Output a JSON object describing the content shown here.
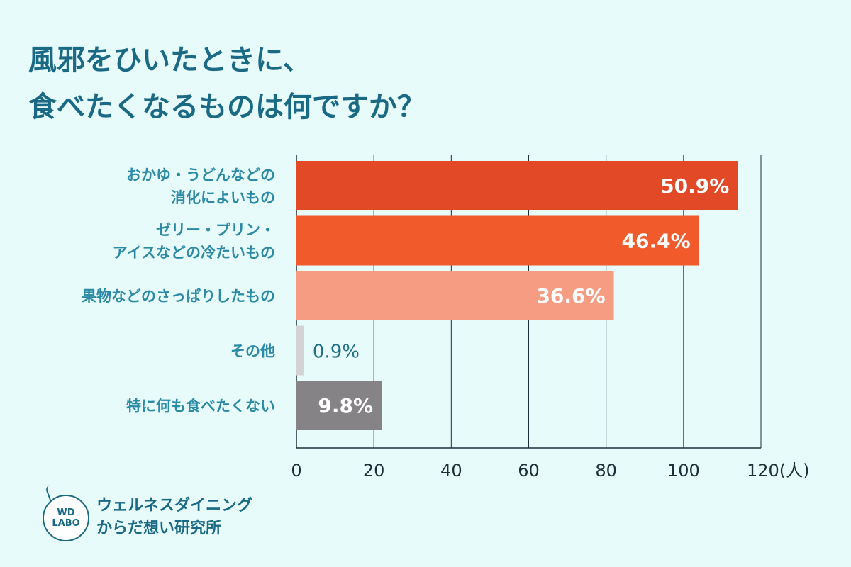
{
  "title": {
    "line1": "風邪をひいたときに、",
    "line2": "食べたくなるものは何ですか？"
  },
  "chart_data": {
    "type": "bar",
    "orientation": "horizontal",
    "categories": [
      [
        "おかゆ・うどんなどの",
        "消化によいもの"
      ],
      [
        "ゼリー・プリン・",
        "アイスなどの冷たいもの"
      ],
      [
        "果物などのさっぱりしたもの"
      ],
      [
        "その他"
      ],
      [
        "特に何も食べたくない"
      ]
    ],
    "values": [
      114,
      104,
      82,
      2,
      22
    ],
    "percent_labels": [
      "50.9%",
      "46.4%",
      "36.6%",
      "0.9%",
      "9.8%"
    ],
    "colors": [
      "#e14927",
      "#f15a2b",
      "#f59c82",
      "#d3d3d3",
      "#858385"
    ],
    "xlim": [
      0,
      120
    ],
    "xticks": [
      "0",
      "20",
      "40",
      "60",
      "80",
      "100",
      "120(人)"
    ],
    "grid": true
  },
  "logo": {
    "badge_line1": "WD",
    "badge_line2": "LABO",
    "name_line1": "ウェルネスダイニング",
    "name_line2": "からだ想い研究所"
  }
}
